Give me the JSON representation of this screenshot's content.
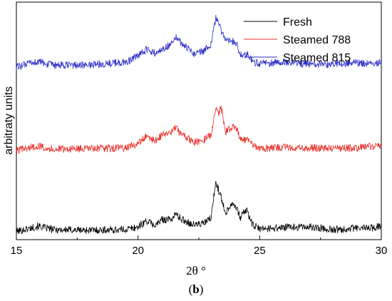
{
  "chart_data": {
    "type": "line",
    "xlabel": "2θ °",
    "ylabel": "arbitraty units",
    "xlim": [
      15,
      30
    ],
    "xticks": [
      "15",
      "20",
      "25",
      "30"
    ],
    "yticks_shown": false,
    "legend_position": "top-right",
    "caption": {
      "open": "(",
      "letter": "b",
      "close": ")"
    },
    "series": [
      {
        "name": "Fresh",
        "color": "#000000",
        "baseline": 0.0,
        "x": [
          15,
          15.9,
          16.5,
          18,
          19.5,
          20,
          20.35,
          20.7,
          21,
          21.35,
          21.55,
          21.8,
          22.3,
          22.7,
          23.0,
          23.2,
          23.4,
          23.6,
          23.85,
          24.0,
          24.2,
          24.35,
          24.5,
          24.7,
          25.0,
          26,
          27,
          28,
          29,
          29.7,
          30
        ],
        "y": [
          0.0,
          0.4,
          0.15,
          0.1,
          0.15,
          0.35,
          0.8,
          0.45,
          0.9,
          0.9,
          1.3,
          0.9,
          0.5,
          0.6,
          1.0,
          3.7,
          2.6,
          1.4,
          2.1,
          2.0,
          1.0,
          1.5,
          1.5,
          0.5,
          0.2,
          0.3,
          0.35,
          0.15,
          0.25,
          0.3,
          0.45
        ]
      },
      {
        "name": "Steamed 788",
        "color": "#e8322d",
        "baseline": 6.0,
        "x": [
          15,
          15.9,
          16.5,
          18,
          19.5,
          20,
          20.35,
          20.7,
          21,
          21.35,
          21.55,
          21.8,
          22.3,
          22.7,
          23.0,
          23.2,
          23.3,
          23.4,
          23.6,
          23.85,
          24.0,
          24.2,
          24.35,
          24.5,
          24.7,
          25.0,
          26,
          27,
          28,
          29,
          29.7,
          30
        ],
        "y": [
          0.0,
          0.35,
          0.1,
          0.15,
          0.2,
          0.5,
          1.1,
          0.7,
          1.2,
          1.3,
          1.7,
          1.2,
          0.6,
          0.8,
          1.2,
          3.3,
          2.6,
          3.3,
          1.4,
          1.7,
          1.8,
          1.0,
          0.8,
          0.9,
          0.4,
          0.15,
          0.25,
          0.2,
          0.15,
          0.2,
          0.35,
          0.3
        ]
      },
      {
        "name": "Steamed 815",
        "color": "#2c2cc8",
        "baseline": 12.2,
        "x": [
          15,
          15.9,
          16.5,
          18,
          19.5,
          20,
          20.35,
          20.7,
          21,
          21.35,
          21.55,
          21.8,
          22.3,
          22.7,
          23.0,
          23.2,
          23.4,
          23.6,
          23.85,
          24.0,
          24.2,
          24.35,
          24.5,
          24.7,
          25.0,
          26,
          27,
          28,
          29,
          29.7,
          30
        ],
        "y": [
          0.0,
          0.4,
          0.1,
          0.15,
          0.35,
          0.8,
          1.3,
          1.0,
          1.3,
          1.7,
          2.3,
          1.7,
          1.0,
          1.2,
          1.7,
          3.6,
          2.8,
          1.9,
          1.9,
          1.9,
          1.0,
          0.8,
          0.9,
          0.4,
          0.25,
          0.35,
          0.2,
          0.2,
          0.3,
          0.2,
          0.35
        ]
      }
    ]
  }
}
